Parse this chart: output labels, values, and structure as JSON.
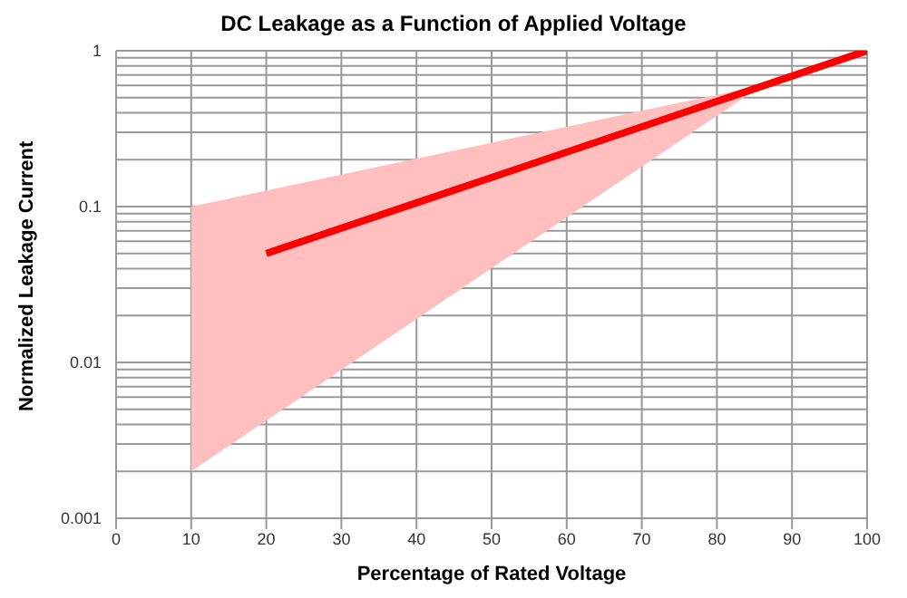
{
  "chart_data": {
    "type": "line",
    "title": "DC Leakage as a Function of Applied Voltage",
    "xlabel": "Percentage of Rated Voltage",
    "ylabel": "Normalized Leakage Current",
    "series": [
      {
        "x": [
          10,
          86
        ],
        "values": [
          null,
          null
        ],
        "lower": [
          0.002,
          0.6
        ],
        "upper": [
          0.1,
          0.6
        ],
        "color": "#ffbfbf"
      },
      {
        "x": [
          20,
          100
        ],
        "values": [
          0.05,
          1
        ],
        "color": "#ff0000"
      }
    ],
    "xlim": [
      0,
      100
    ],
    "xticks": [
      0,
      10,
      20,
      30,
      40,
      50,
      60,
      70,
      80,
      90,
      100
    ],
    "ylim": [
      0.001,
      1
    ],
    "log": true,
    "yticks": [
      0.001,
      {
        "value": 0.002,
        "label": null
      },
      {
        "value": 0.003,
        "label": null
      },
      {
        "value": 0.004,
        "label": null
      },
      {
        "value": 0.005,
        "label": null
      },
      {
        "value": 0.006,
        "label": null
      },
      {
        "value": 0.007,
        "label": null
      },
      {
        "value": 0.008,
        "label": null
      },
      {
        "value": 0.009,
        "label": null
      },
      0.01,
      {
        "value": 0.02,
        "label": null
      },
      {
        "value": 0.03,
        "label": null
      },
      {
        "value": 0.04,
        "label": null
      },
      {
        "value": 0.05,
        "label": null
      },
      {
        "value": 0.06,
        "label": null
      },
      {
        "value": 0.07,
        "label": null
      },
      {
        "value": 0.08,
        "label": null
      },
      {
        "value": 0.09,
        "label": null
      },
      0.1,
      {
        "value": 0.2,
        "label": null
      },
      {
        "value": 0.3,
        "label": null
      },
      {
        "value": 0.4,
        "label": null
      },
      {
        "value": 0.5,
        "label": null
      },
      {
        "value": 0.6,
        "label": null
      },
      {
        "value": 0.7,
        "label": null
      },
      {
        "value": 0.8,
        "label": null
      },
      {
        "value": 0.9,
        "label": null
      },
      1
    ],
    "grid": true,
    "marker": "none",
    "line_style": "solid"
  }
}
